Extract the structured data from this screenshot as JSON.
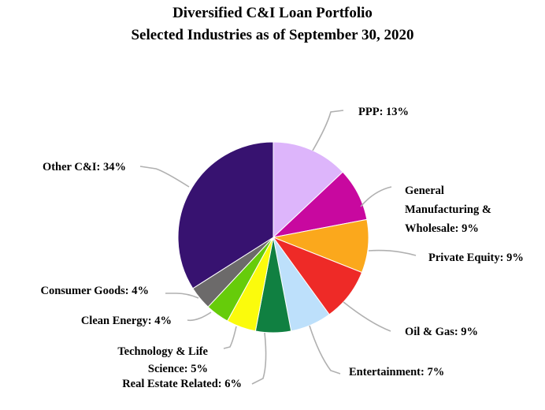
{
  "chart_data": {
    "type": "pie",
    "title": "Diversified C&I Loan Portfolio",
    "subtitle": "Selected Industries as of September 30, 2020",
    "slices": [
      {
        "label": "PPP: 13%",
        "value": 13,
        "color": "#DDB5FB"
      },
      {
        "label": "General Manufacturing & Wholesale: 9%",
        "label_lines": [
          "General",
          "Manufacturing &",
          "Wholesale: 9%"
        ],
        "value": 9,
        "color": "#C8089F"
      },
      {
        "label": "Private Equity: 9%",
        "value": 9,
        "color": "#FBA81C"
      },
      {
        "label": "Oil & Gas: 9%",
        "value": 9,
        "color": "#EE2A27"
      },
      {
        "label": "Entertainment: 7%",
        "value": 7,
        "color": "#BDE0FB"
      },
      {
        "label": "Real Estate Related: 6%",
        "value": 6,
        "color": "#108041"
      },
      {
        "label": "Technology & Life Science: 5%",
        "label_lines": [
          "Technology & Life",
          "Science: 5%"
        ],
        "value": 5,
        "color": "#FBFB0C"
      },
      {
        "label": "Clean Energy: 4%",
        "value": 4,
        "color": "#66CC0A"
      },
      {
        "label": "Consumer Goods: 4%",
        "value": 4,
        "color": "#6C6A6A"
      },
      {
        "label": "Other C&I: 34%",
        "value": 34,
        "color": "#371270"
      }
    ]
  }
}
